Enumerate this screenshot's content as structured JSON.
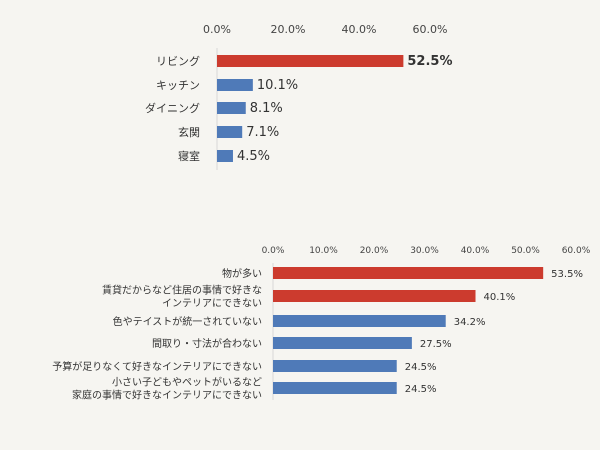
{
  "chart_data": [
    {
      "type": "bar",
      "orientation": "horizontal",
      "categories": [
        "リビング",
        "キッチン",
        "ダイニング",
        "玄関",
        "寝室"
      ],
      "values": [
        52.5,
        10.1,
        8.1,
        7.1,
        4.5
      ],
      "value_labels": [
        "52.5%",
        "10.1%",
        "8.1%",
        "7.1%",
        "4.5%"
      ],
      "bar_colors": [
        "#cc3b2e",
        "#4f7ab8",
        "#4f7ab8",
        "#4f7ab8",
        "#4f7ab8"
      ],
      "xlim": [
        0,
        60
      ],
      "xticks": [
        "0.0%",
        "20.0%",
        "40.0%",
        "60.0%"
      ],
      "axis_position": "top",
      "grid": false
    },
    {
      "type": "bar",
      "orientation": "horizontal",
      "categories": [
        [
          "物が多い"
        ],
        [
          "賃貸だからなど住居の事情で好きな",
          "インテリアにできない"
        ],
        [
          "色やテイストが統一されていない"
        ],
        [
          "間取り・寸法が合わない"
        ],
        [
          "予算が足りなくて好きなインテリアにできない"
        ],
        [
          "小さい子どもやペットがいるなど",
          "家庭の事情で好きなインテリアにできない"
        ]
      ],
      "values": [
        53.5,
        40.1,
        34.2,
        27.5,
        24.5,
        24.5
      ],
      "value_labels": [
        "53.5%",
        "40.1%",
        "34.2%",
        "27.5%",
        "24.5%",
        "24.5%"
      ],
      "bar_colors": [
        "#cc3b2e",
        "#cc3b2e",
        "#4f7ab8",
        "#4f7ab8",
        "#4f7ab8",
        "#4f7ab8"
      ],
      "xlim": [
        0,
        60
      ],
      "xticks": [
        "0.0%",
        "10.0%",
        "20.0%",
        "30.0%",
        "40.0%",
        "50.0%",
        "60.0%"
      ],
      "axis_position": "top",
      "grid": false
    }
  ]
}
